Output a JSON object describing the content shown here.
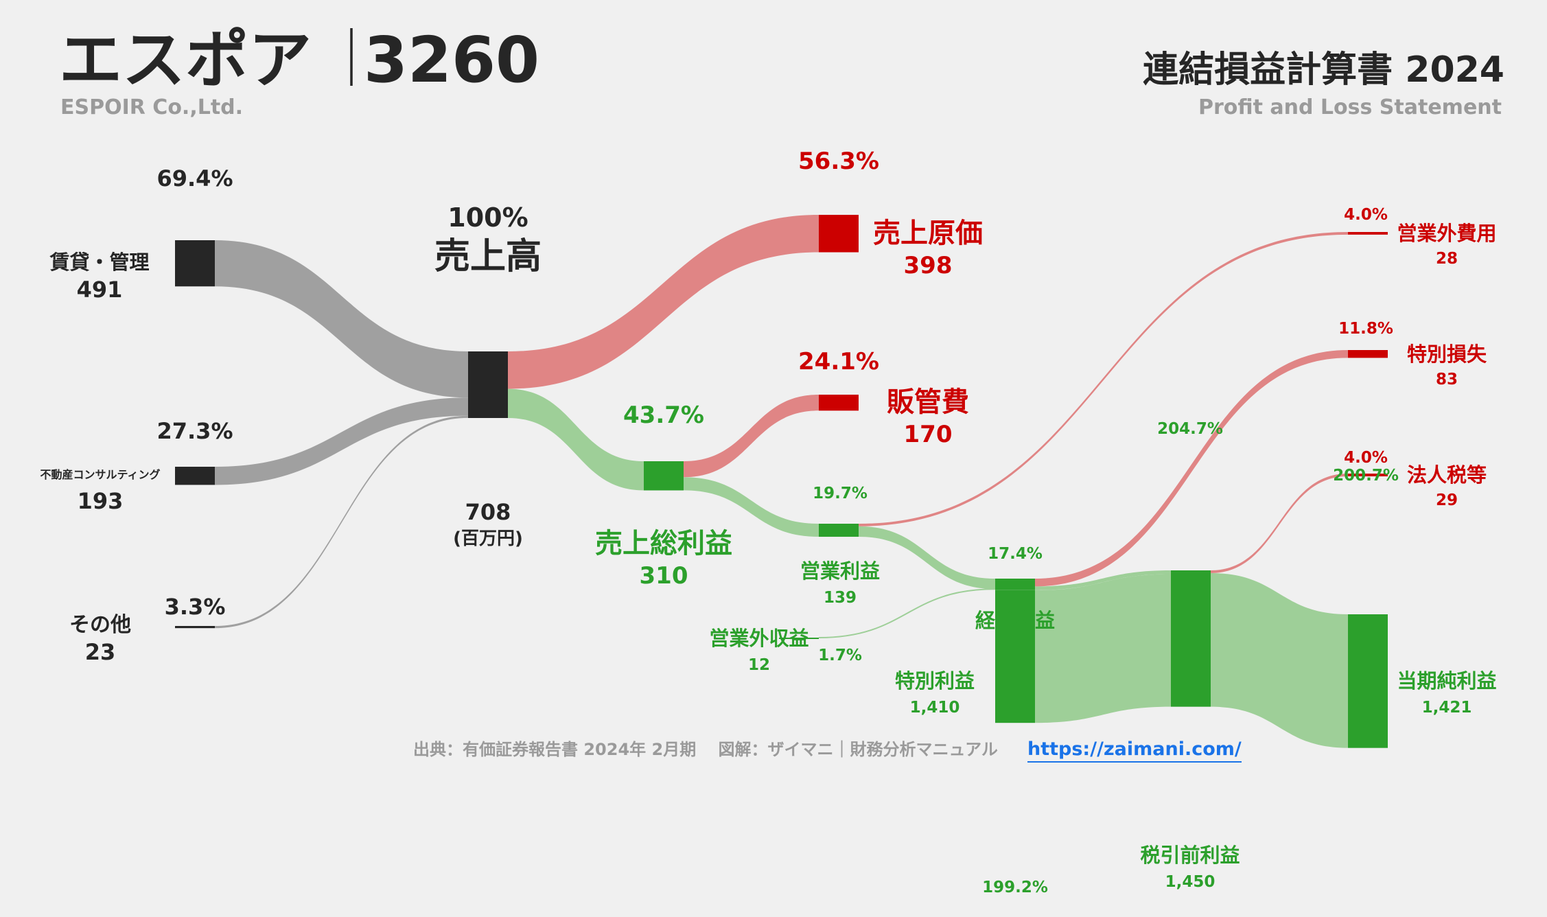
{
  "header": {
    "company": "エスポア",
    "separator": "｜",
    "code": "3260",
    "company_en": "ESPOIR Co.,Ltd.",
    "title": "連結損益計算書 2024",
    "title_en": "Profit and Loss Statement"
  },
  "unit": "(百万円)",
  "footer": {
    "source": "出典：有価証券報告書 2024年 2月期　 図解：ザイマニ｜財務分析マニュアル",
    "url": "https://zaimani.com/"
  },
  "colors": {
    "background": "#f0f0f0",
    "dark": "#262626",
    "revenue_flow": "#a0a0a0",
    "cost_node": "#cc0000",
    "cost_flow": "#e08585",
    "profit_node": "#2ca02c",
    "profit_flow": "#9ecf98"
  },
  "chart_data": {
    "type": "sankey",
    "unit": "百万円",
    "nodes": [
      {
        "id": "rental",
        "label": "賃貸・管理",
        "value": "491",
        "pct": "69.4%"
      },
      {
        "id": "consulting",
        "label": "不動産コンサルティング",
        "value": "193",
        "pct": "27.3%"
      },
      {
        "id": "other",
        "label": "その他",
        "value": "23",
        "pct": "3.3%"
      },
      {
        "id": "revenue",
        "label": "売上高",
        "value": "708",
        "pct": "100%"
      },
      {
        "id": "cogs",
        "label": "売上原価",
        "value": "398",
        "pct": "56.3%"
      },
      {
        "id": "gross",
        "label": "売上総利益",
        "value": "310",
        "pct": "43.7%"
      },
      {
        "id": "sga",
        "label": "販管費",
        "value": "170",
        "pct": "24.1%"
      },
      {
        "id": "op",
        "label": "営業利益",
        "value": "139",
        "pct": "19.7%"
      },
      {
        "id": "nonop_inc",
        "label": "営業外収益",
        "value": "12",
        "pct": "1.7%"
      },
      {
        "id": "nonop_exp",
        "label": "営業外費用",
        "value": "28",
        "pct": "4.0%"
      },
      {
        "id": "ordinary",
        "label": "経常利益",
        "value": "",
        "pct": "17.4%"
      },
      {
        "id": "special_inc",
        "label": "特別利益",
        "value": "1,410",
        "pct": "199.2%"
      },
      {
        "id": "special_loss",
        "label": "特別損失",
        "value": "83",
        "pct": "11.8%"
      },
      {
        "id": "pretax",
        "label": "税引前利益",
        "value": "1,450",
        "pct": "204.7%"
      },
      {
        "id": "tax",
        "label": "法人税等",
        "value": "29",
        "pct": "4.0%"
      },
      {
        "id": "net",
        "label": "当期純利益",
        "value": "1,421",
        "pct": "200.7%"
      }
    ],
    "links": [
      {
        "from": "rental",
        "to": "revenue",
        "value": 491
      },
      {
        "from": "consulting",
        "to": "revenue",
        "value": 193
      },
      {
        "from": "other",
        "to": "revenue",
        "value": 23
      },
      {
        "from": "revenue",
        "to": "cogs",
        "value": 398
      },
      {
        "from": "revenue",
        "to": "gross",
        "value": 310
      },
      {
        "from": "gross",
        "to": "sga",
        "value": 170
      },
      {
        "from": "gross",
        "to": "op",
        "value": 139
      },
      {
        "from": "op",
        "to": "nonop_exp",
        "value": 28
      },
      {
        "from": "op",
        "to": "ordinary",
        "value": 111
      },
      {
        "from": "nonop_inc",
        "to": "ordinary",
        "value": 12
      },
      {
        "from": "ordinary",
        "to": "special_loss",
        "value": 83
      },
      {
        "from": "ordinary",
        "to": "pretax",
        "value": 40
      },
      {
        "from": "special_inc",
        "to": "pretax",
        "value": 1410
      },
      {
        "from": "pretax",
        "to": "tax",
        "value": 29
      },
      {
        "from": "pretax",
        "to": "net",
        "value": 1421
      }
    ]
  }
}
